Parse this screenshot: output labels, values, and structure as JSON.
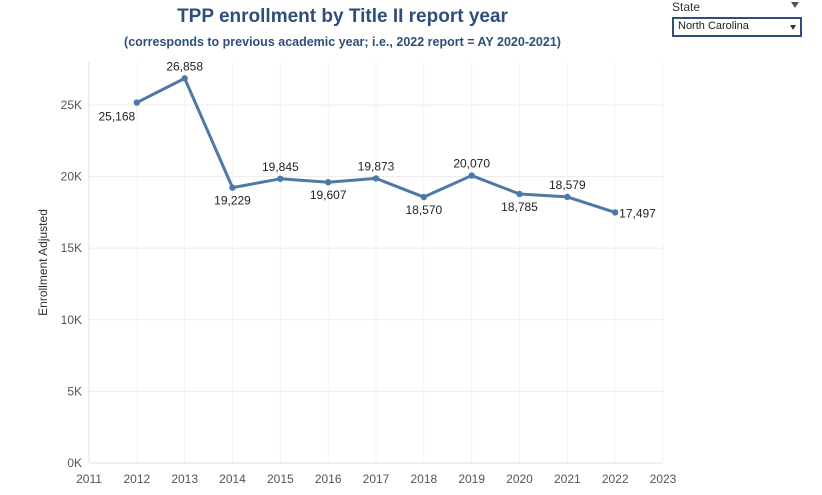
{
  "filter": {
    "label": "State",
    "value": "North Carolina"
  },
  "chart_data": {
    "type": "line",
    "title": "TPP enrollment by Title II report year",
    "subtitle": "(corresponds to previous academic year; i.e., 2022 report = AY 2020-2021)",
    "xlabel": "",
    "ylabel": "Enrollment Adjusted",
    "x": [
      2012,
      2013,
      2014,
      2015,
      2016,
      2017,
      2018,
      2019,
      2020,
      2021,
      2022
    ],
    "values": [
      25168,
      26858,
      19229,
      19845,
      19607,
      19873,
      18570,
      20070,
      18785,
      18579,
      17497
    ],
    "data_labels": [
      "25,168",
      "26,858",
      "19,229",
      "19,845",
      "19,607",
      "19,873",
      "18,570",
      "20,070",
      "18,785",
      "18,579",
      "17,497"
    ],
    "xlim": [
      2011,
      2023
    ],
    "x_ticks": [
      "2011",
      "2012",
      "2013",
      "2014",
      "2015",
      "2016",
      "2017",
      "2018",
      "2019",
      "2020",
      "2021",
      "2022",
      "2023"
    ],
    "ylim": [
      0,
      28000
    ],
    "y_ticks": [
      0,
      5000,
      10000,
      15000,
      20000,
      25000
    ],
    "y_tick_labels": [
      "0K",
      "5K",
      "10K",
      "15K",
      "20K",
      "25K"
    ],
    "grid": true,
    "line_color": "#4e79a7"
  }
}
